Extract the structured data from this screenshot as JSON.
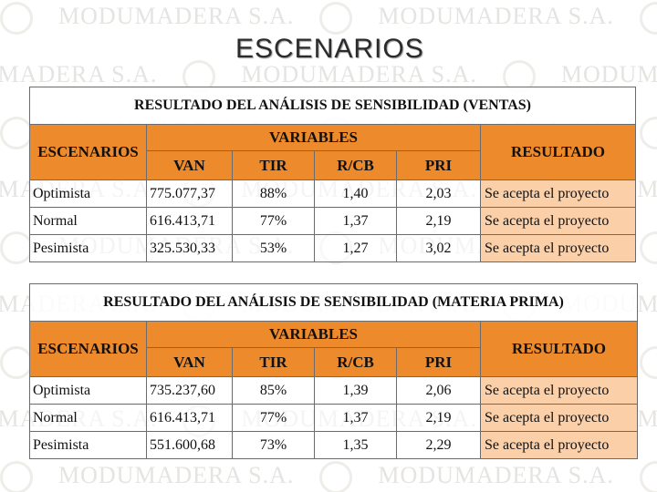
{
  "page": {
    "title": "ESCENARIOS",
    "watermark_text": "MODUMADERA S.A."
  },
  "tables": [
    {
      "caption": "RESULTADO DEL ANÁLISIS DE SENSIBILIDAD (VENTAS)",
      "scenarios_header": "ESCENARIOS",
      "variables_header": "VARIABLES",
      "result_header": "RESULTADO",
      "columns": [
        "VAN",
        "TIR",
        "R/CB",
        "PRI"
      ],
      "rows": [
        {
          "scenario": "Optimista",
          "van": "775.077,37",
          "tir": "88%",
          "rcb": "1,40",
          "pri": "2,03",
          "result": "Se acepta el proyecto"
        },
        {
          "scenario": "Normal",
          "van": "616.413,71",
          "tir": "77%",
          "rcb": "1,37",
          "pri": "2,19",
          "result": "Se acepta el proyecto"
        },
        {
          "scenario": "Pesimista",
          "van": "325.530,33",
          "tir": "53%",
          "rcb": "1,27",
          "pri": "3,02",
          "result": "Se acepta el proyecto"
        }
      ]
    },
    {
      "caption": "RESULTADO DEL ANÁLISIS DE SENSIBILIDAD (MATERIA PRIMA)",
      "scenarios_header": "ESCENARIOS",
      "variables_header": "VARIABLES",
      "result_header": "RESULTADO",
      "columns": [
        "VAN",
        "TIR",
        "R/CB",
        "PRI"
      ],
      "rows": [
        {
          "scenario": "Optimista",
          "van": "735.237,60",
          "tir": "85%",
          "rcb": "1,39",
          "pri": "2,06",
          "result": "Se acepta el proyecto"
        },
        {
          "scenario": "Normal",
          "van": "616.413,71",
          "tir": "77%",
          "rcb": "1,37",
          "pri": "2,19",
          "result": "Se acepta el proyecto"
        },
        {
          "scenario": "Pesimista",
          "van": "551.600,68",
          "tir": "73%",
          "rcb": "1,35",
          "pri": "2,29",
          "result": "Se acepta el proyecto"
        }
      ]
    }
  ],
  "colors": {
    "header_orange": "#ed8a2c",
    "result_peach": "#fbcfa7",
    "border": "#6b6b6b"
  }
}
